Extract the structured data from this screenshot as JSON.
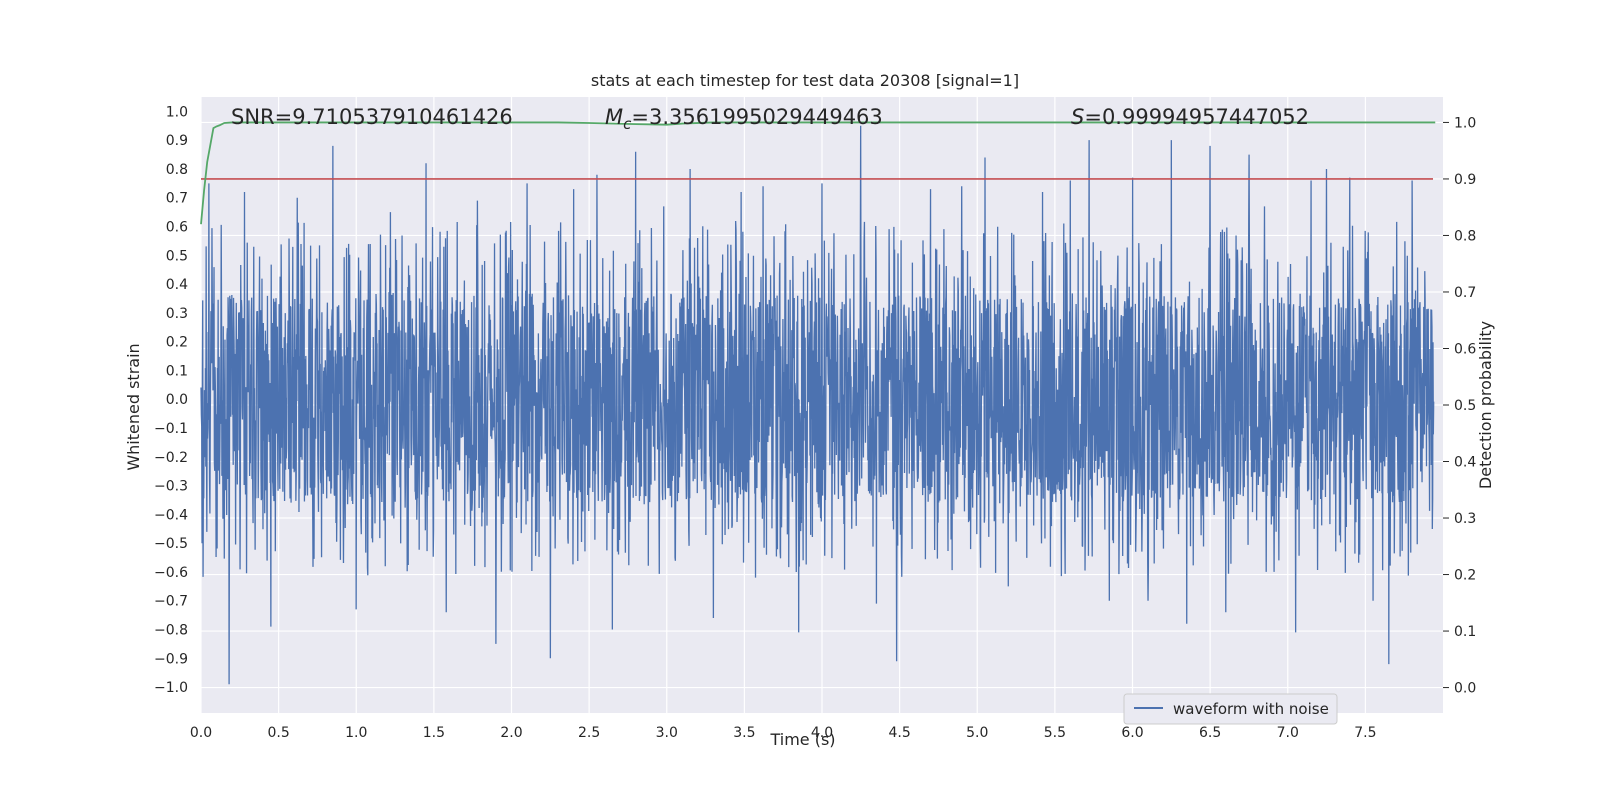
{
  "chart_data": {
    "type": "line",
    "title": "stats at each timestep for test data 20308 [signal=1]",
    "xlabel": "Time (s)",
    "ylabel_left": "Whitened strain",
    "ylabel_right": "Detection probability",
    "xlim": [
      0.0,
      8.0
    ],
    "ylim_left": [
      -1.09,
      1.05
    ],
    "ylim_right": [
      -0.045,
      1.045
    ],
    "x_ticks": [
      0.0,
      0.5,
      1.0,
      1.5,
      2.0,
      2.5,
      3.0,
      3.5,
      4.0,
      4.5,
      5.0,
      5.5,
      6.0,
      6.5,
      7.0,
      7.5
    ],
    "x_tick_labels": [
      "0.0",
      "0.5",
      "1.0",
      "1.5",
      "2.0",
      "2.5",
      "3.0",
      "3.5",
      "4.0",
      "4.5",
      "5.0",
      "5.5",
      "6.0",
      "6.5",
      "7.0",
      "7.5"
    ],
    "y_left_ticks": [
      1.0,
      0.9,
      0.8,
      0.7,
      0.6,
      0.5,
      0.4,
      0.3,
      0.2,
      0.1,
      0.0,
      -0.1,
      -0.2,
      -0.3,
      -0.4,
      -0.5,
      -0.6,
      -0.7,
      -0.8,
      -0.9,
      -1.0
    ],
    "y_left_tick_labels": [
      "1.0",
      "0.9",
      "0.8",
      "0.7",
      "0.6",
      "0.5",
      "0.4",
      "0.3",
      "0.2",
      "0.1",
      "0.0",
      "−0.1",
      "−0.2",
      "−0.3",
      "−0.4",
      "−0.5",
      "−0.6",
      "−0.7",
      "−0.8",
      "−0.9",
      "−1.0"
    ],
    "y_right_ticks": [
      1.0,
      0.9,
      0.8,
      0.7,
      0.6,
      0.5,
      0.4,
      0.3,
      0.2,
      0.1,
      0.0
    ],
    "y_right_tick_labels": [
      "1.0",
      "0.9",
      "0.8",
      "0.7",
      "0.6",
      "0.5",
      "0.4",
      "0.3",
      "0.2",
      "0.1",
      "0.0"
    ],
    "annotations": {
      "snr": "SNR=9.710537910461426",
      "mc_symbol": "M",
      "mc_sub": "c",
      "mc_value": "=3.3561995029449463",
      "s_symbol": "S",
      "s_value": "=0.99994957447052"
    },
    "series": [
      {
        "name": "waveform with noise",
        "axis": "left",
        "color": "#4c72b0",
        "peak_times": [
          0.05,
          0.18,
          0.28,
          0.45,
          0.62,
          0.85,
          1.0,
          1.22,
          1.45,
          1.58,
          1.78,
          1.9,
          2.1,
          2.25,
          2.4,
          2.55,
          2.65,
          2.8,
          2.98,
          3.15,
          3.3,
          3.48,
          3.62,
          3.85,
          4.0,
          4.25,
          4.35,
          4.48,
          4.7,
          4.9,
          5.05,
          5.2,
          5.42,
          5.6,
          5.72,
          5.85,
          6.0,
          6.1,
          6.25,
          6.35,
          6.5,
          6.6,
          6.75,
          6.85,
          7.05,
          7.15,
          7.25,
          7.4,
          7.55,
          7.65,
          7.8,
          7.95
        ],
        "peak_values": [
          0.75,
          -0.99,
          0.72,
          -0.79,
          0.7,
          0.88,
          -0.73,
          0.65,
          0.82,
          -0.74,
          0.69,
          -0.85,
          0.75,
          -0.9,
          0.73,
          0.78,
          -0.8,
          0.86,
          0.67,
          0.8,
          -0.76,
          0.72,
          0.74,
          -0.81,
          0.75,
          0.95,
          -0.71,
          -0.91,
          0.73,
          0.74,
          0.84,
          -0.65,
          0.72,
          0.76,
          0.9,
          -0.7,
          0.77,
          -0.7,
          0.9,
          -0.78,
          0.88,
          -0.74,
          0.85,
          0.67,
          -0.81,
          0.76,
          0.8,
          0.77,
          -0.7,
          -0.92,
          0.76,
          0.84
        ]
      },
      {
        "name": "detection probability",
        "axis": "right",
        "color": "#55a868",
        "x": [
          0.0,
          0.02,
          0.04,
          0.06,
          0.08,
          0.1,
          0.12,
          0.15,
          0.2,
          0.5,
          1.0,
          1.5,
          2.0,
          2.3,
          2.5,
          2.8,
          3.0,
          3.1,
          3.3,
          3.5,
          4.0,
          5.0,
          6.0,
          7.0,
          7.95
        ],
        "y": [
          0.82,
          0.88,
          0.93,
          0.96,
          0.99,
          0.993,
          0.995,
          0.999,
          1.0,
          1.0,
          1.0,
          1.0,
          1.0,
          1.0,
          0.999,
          0.997,
          0.996,
          0.998,
          1.0,
          1.0,
          1.0,
          1.0,
          1.0,
          1.0,
          1.0
        ]
      },
      {
        "name": "threshold",
        "axis": "right",
        "color": "#c44e52",
        "y": 0.9
      }
    ],
    "legend": {
      "label": "waveform with noise",
      "placement": "lower-right"
    }
  }
}
